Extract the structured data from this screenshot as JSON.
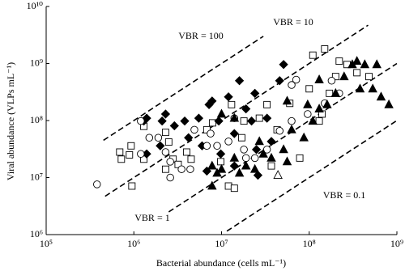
{
  "chart_data": {
    "type": "scatter",
    "xlabel": "Bacterial abundance (cells mL⁻¹)",
    "ylabel": "Viral abundance (VLPs mL⁻¹)",
    "xscale": "log",
    "yscale": "log",
    "xlim": [
      100000,
      1000000000
    ],
    "ylim": [
      1000000,
      10000000000
    ],
    "xticks": [
      {
        "value": 100000,
        "label": "10⁵"
      },
      {
        "value": 1000000,
        "label": "10⁶"
      },
      {
        "value": 10000000,
        "label": "10⁷"
      },
      {
        "value": 100000000,
        "label": "10⁸"
      },
      {
        "value": 1000000000,
        "label": "10⁹"
      }
    ],
    "yticks": [
      {
        "value": 1000000,
        "label": "10⁶"
      },
      {
        "value": 10000000,
        "label": "10⁷"
      },
      {
        "value": 100000000,
        "label": "10⁸"
      },
      {
        "value": 1000000000,
        "label": "10⁹"
      },
      {
        "value": 10000000000,
        "label": "10¹⁰"
      }
    ],
    "reference_lines": [
      {
        "vbr": 100,
        "label": "VBR = 100",
        "xlim": [
          450000,
          30000000
        ]
      },
      {
        "vbr": 10,
        "label": "VBR = 10",
        "xlim": [
          470000,
          470000000
        ]
      },
      {
        "vbr": 1,
        "label": "VBR = 1",
        "xlim": [
          2500000,
          1000000000
        ]
      },
      {
        "vbr": 0.1,
        "label": "VBR = 0.1",
        "xlim": [
          11500000,
          1000000000
        ]
      }
    ],
    "series": [
      {
        "marker": "square",
        "filled": false,
        "color": "#000000",
        "x": [
          690000,
          720000,
          930000,
          890000,
          950000,
          1300000,
          1300000,
          2300000,
          2500000,
          2800000,
          2300000,
          3200000,
          4000000,
          4500000,
          6800000,
          7900000,
          13000000,
          12000000,
          14000000,
          9800000,
          17000000,
          18000000,
          27000000,
          33000000,
          37000000,
          43000000,
          60000000,
          100000000,
          110000000,
          140000000,
          150000000,
          200000000,
          220000000,
          270000000,
          350000000,
          480000000,
          78000000,
          130000000,
          170000000
        ],
        "values": [
          28000000,
          21000000,
          36000000,
          25000000,
          7100000,
          79000000,
          21000000,
          62000000,
          42000000,
          21000000,
          14000000,
          17000000,
          28000000,
          21000000,
          69000000,
          91000000,
          190000000,
          7100000,
          6500000,
          19000000,
          50000000,
          98000000,
          110000000,
          190000000,
          16000000,
          69000000,
          200000000,
          360000000,
          1400000000,
          130000000,
          1800000000,
          590000000,
          1100000000,
          960000000,
          690000000,
          590000000,
          22000000,
          98000000,
          300000000
        ]
      },
      {
        "marker": "diamond",
        "filled": true,
        "color": "#000000",
        "x": [
          1300000,
          1400000,
          2100000,
          2300000,
          2000000,
          2900000,
          3800000,
          4200000,
          5500000,
          6000000,
          7200000,
          7800000,
          9300000,
          9800000,
          12000000,
          14000000,
          16000000,
          19000000,
          24000000,
          33000000,
          25000000,
          26000000,
          37000000,
          46000000,
          51000000,
          22000000,
          1400000,
          6800000,
          14000000
        ],
        "values": [
          98000000,
          110000000,
          98000000,
          130000000,
          36000000,
          81000000,
          98000000,
          50000000,
          110000000,
          36000000,
          190000000,
          220000000,
          98000000,
          26000000,
          260000000,
          59000000,
          500000000,
          160000000,
          300000000,
          110000000,
          31000000,
          11000000,
          43000000,
          500000000,
          960000000,
          98000000,
          26000000,
          13000000,
          16000000
        ]
      },
      {
        "marker": "circle",
        "filled": false,
        "color": "#000000",
        "x": [
          380000,
          1200000,
          1500000,
          1900000,
          2300000,
          2600000,
          3500000,
          4400000,
          2600000,
          1200000,
          4900000,
          7500000,
          8900000,
          12000000,
          14000000,
          18000000,
          19000000,
          24000000,
          33000000,
          46000000,
          63000000,
          63000000,
          71000000,
          96000000,
          150000000,
          220000000,
          180000000,
          6800000
        ],
        "values": [
          7600000,
          98000000,
          50000000,
          50000000,
          28000000,
          19000000,
          14000000,
          14000000,
          10000000,
          26000000,
          69000000,
          59000000,
          36000000,
          43000000,
          110000000,
          31000000,
          22000000,
          22000000,
          31000000,
          66000000,
          98000000,
          420000000,
          520000000,
          130000000,
          200000000,
          300000000,
          500000000,
          36000000
        ]
      },
      {
        "marker": "triangle",
        "filled": true,
        "color": "#000000",
        "x": [
          7800000,
          8900000,
          10000000,
          14000000,
          16000000,
          19000000,
          24000000,
          27000000,
          30000000,
          37000000,
          51000000,
          56000000,
          87000000,
          96000000,
          110000000,
          130000000,
          160000000,
          200000000,
          250000000,
          310000000,
          350000000,
          380000000,
          430000000,
          530000000,
          590000000,
          660000000,
          810000000,
          14000000,
          10000000,
          63000000,
          56000000,
          130000000,
          7800000
        ],
        "values": [
          16000000,
          12000000,
          14000000,
          22000000,
          12000000,
          16000000,
          14000000,
          43000000,
          26000000,
          22000000,
          31000000,
          19000000,
          50000000,
          190000000,
          98000000,
          160000000,
          190000000,
          300000000,
          590000000,
          960000000,
          1100000000,
          360000000,
          960000000,
          360000000,
          960000000,
          260000000,
          190000000,
          110000000,
          130000000,
          69000000,
          220000000,
          520000000,
          7100000
        ]
      },
      {
        "marker": "triangle",
        "filled": false,
        "color": "#000000",
        "x": [
          44000000
        ],
        "values": [
          11000000
        ]
      }
    ]
  }
}
